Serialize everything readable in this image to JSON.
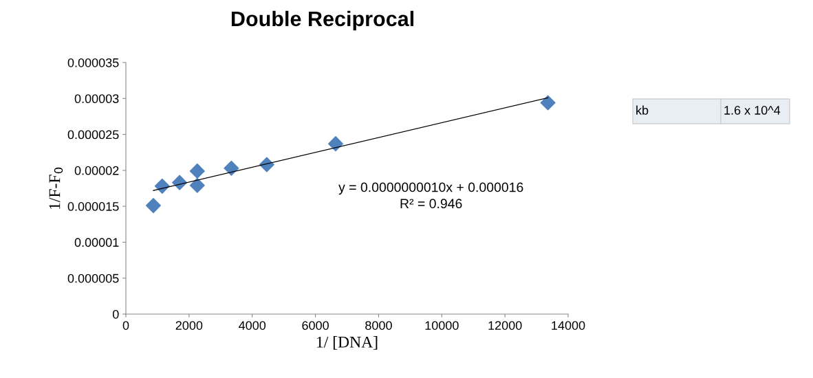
{
  "chart_data": {
    "type": "scatter",
    "title": "Double Reciprocal",
    "xlabel": "1/ [DNA]",
    "ylabel": "1/F-F$_{0}$",
    "series": [
      {
        "color": "#4f81bd",
        "marker": "diamond",
        "x": [
          870,
          1150,
          1700,
          2260,
          2260,
          3340,
          4460,
          6640,
          13360
        ],
        "values": [
          1.51e-05,
          1.78e-05,
          1.83e-05,
          1.99e-05,
          1.79e-05,
          2.03e-05,
          2.08e-05,
          2.37e-05,
          2.94e-05
        ]
      },
      {
        "type": "line",
        "color": "#000000",
        "marker": "none",
        "x": [
          870,
          13360
        ],
        "values": [
          1.72e-05,
          3.01e-05
        ]
      }
    ],
    "xlim": [
      0,
      14000
    ],
    "xticks": [
      0,
      2000,
      4000,
      6000,
      8000,
      10000,
      12000,
      14000
    ],
    "ylim": [
      0,
      3.5e-05
    ],
    "yticks": [
      {
        "value": 0,
        "label": "0"
      },
      {
        "value": 5e-06,
        "label": "0.000005"
      },
      {
        "value": 1e-05,
        "label": "0.00001"
      },
      {
        "value": 1.5e-05,
        "label": "0.000015"
      },
      {
        "value": 2e-05,
        "label": "0.00002"
      },
      {
        "value": 2.5e-05,
        "label": "0.000025"
      },
      {
        "value": 3e-05,
        "label": "0.00003"
      },
      {
        "value": 3.5e-05,
        "label": "0.000035"
      }
    ],
    "grid": false,
    "legend": false,
    "annotations": [
      "y = 0.0000000010x + 0.000016\nR² = 0.946",
      "kb",
      "1.6 x 10^4"
    ]
  }
}
